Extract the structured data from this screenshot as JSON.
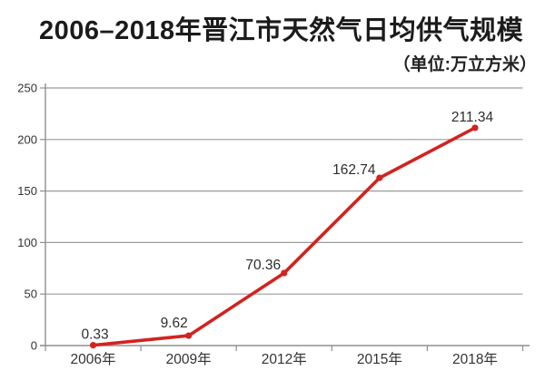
{
  "header": {
    "title": "2006–2018年晋江市天然气日均供气规模",
    "unit_note": "（单位:万立方米）"
  },
  "chart_data": {
    "type": "line",
    "title": "2006–2018年晋江市天然气日均供气规模",
    "unit_label": "（单位:万立方米）",
    "categories": [
      "2006年",
      "2009年",
      "2012年",
      "2015年",
      "2018年"
    ],
    "values": [
      0.33,
      9.62,
      70.36,
      162.74,
      211.34
    ],
    "data_labels": [
      "0.33",
      "9.62",
      "70.36",
      "162.74",
      "211.34"
    ],
    "ylim": [
      0,
      250
    ],
    "yticks": [
      0,
      50,
      100,
      150,
      200,
      250
    ],
    "grid": true,
    "legend": "none",
    "colors": {
      "line": "#d2231f",
      "marker": "#d2231f",
      "grid": "#9b9b9b",
      "axis": "#8f8f8f",
      "tick_label": "#333333",
      "data_label": "#2e2e2e"
    }
  }
}
